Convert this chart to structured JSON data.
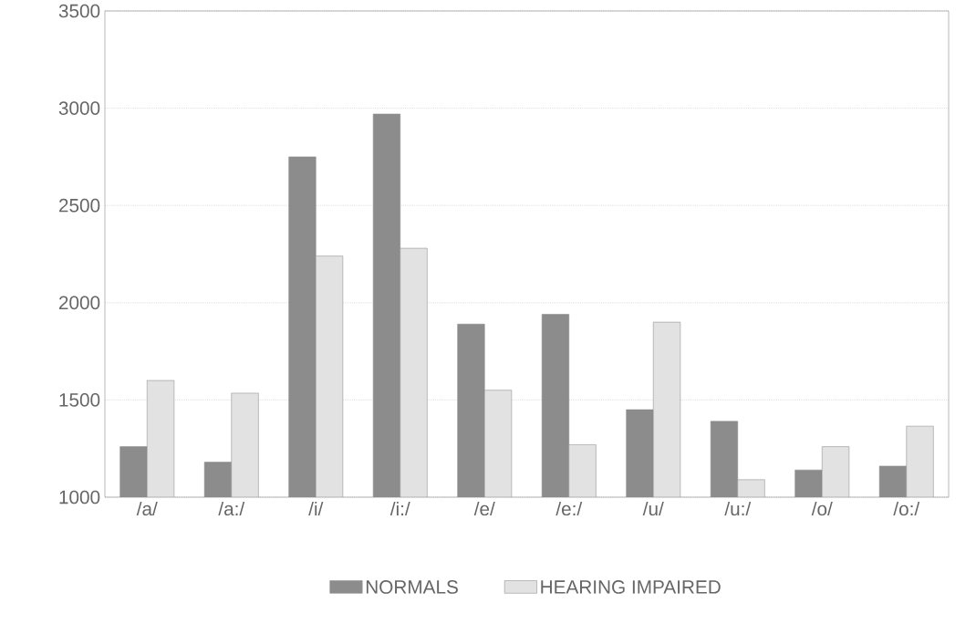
{
  "chart_data": {
    "type": "bar",
    "categories": [
      "/a/",
      "/a:/",
      "/i/",
      "/i:/",
      "/e/",
      "/e:/",
      "/u/",
      "/u:/",
      "/o/",
      "/o:/"
    ],
    "series": [
      {
        "name": "NORMALS",
        "color": "#8c8c8c",
        "values": [
          1260,
          1180,
          2750,
          2970,
          1890,
          1940,
          1450,
          1390,
          1140,
          1160
        ]
      },
      {
        "name": "HEARING IMPAIRED",
        "color": "#e2e2e2",
        "values": [
          1600,
          1535,
          2240,
          2280,
          1550,
          1270,
          1900,
          1090,
          1260,
          1365
        ]
      }
    ],
    "ylim": [
      1000,
      3500
    ],
    "yticks": [
      1000,
      1500,
      2000,
      2500,
      3000,
      3500
    ],
    "grid": "y",
    "legend": "bottom"
  }
}
